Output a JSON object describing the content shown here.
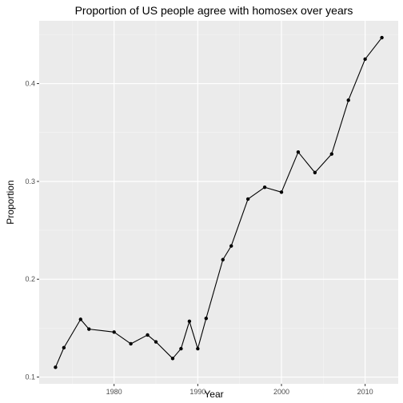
{
  "chart_data": {
    "type": "line",
    "title": "Proportion of US people agree with homosex over years",
    "xlabel": "Year",
    "ylabel": "Proportion",
    "xlim": [
      1971.05,
      2013.95
    ],
    "ylim": [
      0.0931,
      0.4642
    ],
    "x_ticks": [
      1980,
      1990,
      2000,
      2010
    ],
    "y_ticks": [
      0.1,
      0.2,
      0.3,
      0.4
    ],
    "x_tick_labels": [
      "1980",
      "1990",
      "2000",
      "2010"
    ],
    "y_tick_labels": [
      "0.1",
      "0.2",
      "0.3",
      "0.4"
    ],
    "grid": true,
    "legend": "none",
    "series": [
      {
        "x": [
          1973,
          1974,
          1976,
          1977,
          1980,
          1982,
          1984,
          1985,
          1987,
          1988,
          1989,
          1990,
          1991,
          1993,
          1994,
          1996,
          1998,
          2000,
          2002,
          2004,
          2006,
          2008,
          2010,
          2012
        ],
        "values": [
          0.11,
          0.13,
          0.159,
          0.149,
          0.146,
          0.134,
          0.143,
          0.136,
          0.119,
          0.129,
          0.157,
          0.129,
          0.16,
          0.22,
          0.234,
          0.282,
          0.294,
          0.289,
          0.33,
          0.309,
          0.328,
          0.383,
          0.425,
          0.447
        ],
        "color": "#000000"
      }
    ],
    "colors": {
      "panel_background": "#ebebeb",
      "grid_major": "#ffffff",
      "grid_minor": "#f5f5f5",
      "tick_color": "#333333",
      "tick_text": "#4d4d4d"
    }
  }
}
